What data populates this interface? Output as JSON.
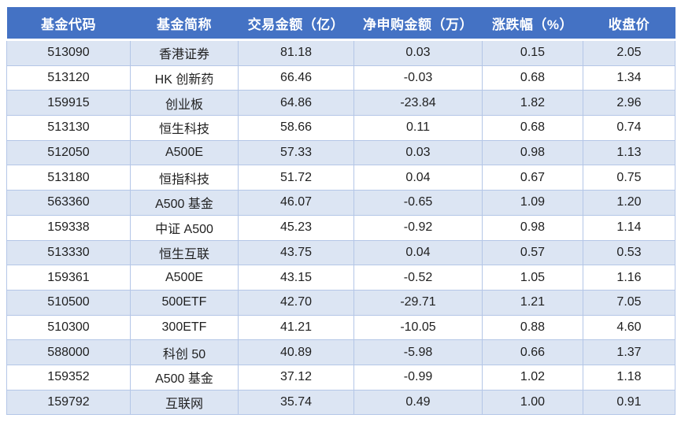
{
  "table": {
    "columns": [
      {
        "key": "fund-code",
        "label": "基金代码"
      },
      {
        "key": "fund-name",
        "label": "基金简称"
      },
      {
        "key": "trade-amount",
        "label": "交易金额（亿）"
      },
      {
        "key": "net-subscription",
        "label": "净申购金额（万）"
      },
      {
        "key": "change-pct",
        "label": "涨跌幅（%）"
      },
      {
        "key": "close-price",
        "label": "收盘价"
      }
    ],
    "rows": [
      [
        "513090",
        "香港证券",
        "81.18",
        "0.03",
        "0.15",
        "2.05"
      ],
      [
        "513120",
        "HK 创新药",
        "66.46",
        "-0.03",
        "0.68",
        "1.34"
      ],
      [
        "159915",
        "创业板",
        "64.86",
        "-23.84",
        "1.82",
        "2.96"
      ],
      [
        "513130",
        "恒生科技",
        "58.66",
        "0.11",
        "0.68",
        "0.74"
      ],
      [
        "512050",
        "A500E",
        "57.33",
        "0.03",
        "0.98",
        "1.13"
      ],
      [
        "513180",
        "恒指科技",
        "51.72",
        "0.04",
        "0.67",
        "0.75"
      ],
      [
        "563360",
        "A500 基金",
        "46.07",
        "-0.65",
        "1.09",
        "1.20"
      ],
      [
        "159338",
        "中证 A500",
        "45.23",
        "-0.92",
        "0.98",
        "1.14"
      ],
      [
        "513330",
        "恒生互联",
        "43.75",
        "0.04",
        "0.57",
        "0.53"
      ],
      [
        "159361",
        "A500E",
        "43.15",
        "-0.52",
        "1.05",
        "1.16"
      ],
      [
        "510500",
        "500ETF",
        "42.70",
        "-29.71",
        "1.21",
        "7.05"
      ],
      [
        "510300",
        "300ETF",
        "41.21",
        "-10.05",
        "0.88",
        "4.60"
      ],
      [
        "588000",
        "科创 50",
        "40.89",
        "-5.98",
        "0.66",
        "1.37"
      ],
      [
        "159352",
        "A500 基金",
        "37.12",
        "-0.99",
        "1.02",
        "1.18"
      ],
      [
        "159792",
        "互联网",
        "35.74",
        "0.49",
        "1.00",
        "0.91"
      ]
    ]
  },
  "colors": {
    "header_bg": "#4472C4",
    "header_text": "#FFFFFF",
    "band_bg": "#DCE5F3",
    "border": "#B4C6E7",
    "text": "#1F1F1F"
  }
}
